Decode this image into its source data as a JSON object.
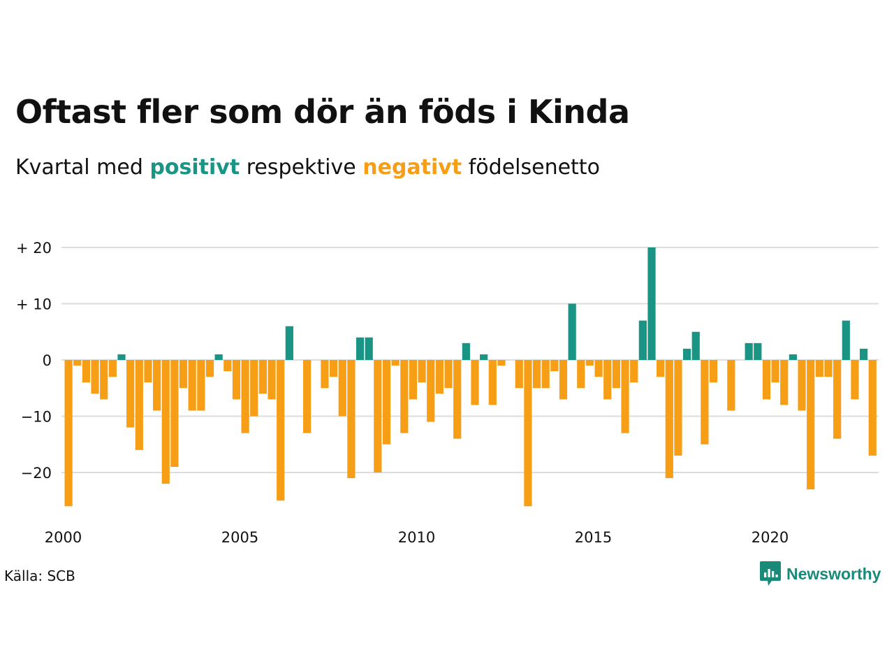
{
  "title": "Oftast fler som dör än föds i Kinda",
  "subtitle": {
    "prefix": "Kvartal med",
    "positive_word": "positivt",
    "middle": "respektive",
    "negative_word": "negativt",
    "suffix": "födelsenetto"
  },
  "source": "Källa: SCB",
  "logo_text": "Newsworthy",
  "colors": {
    "positive": "#1a9484",
    "negative": "#f59e16",
    "grid": "#dddddd",
    "text": "#111111"
  },
  "chart_data": {
    "type": "bar",
    "x_ticks": [
      "2000",
      "2005",
      "2010",
      "2015",
      "2020"
    ],
    "y_ticks": [
      "+ 20",
      "+ 10",
      "0",
      "−10",
      "−20"
    ],
    "y_tick_values": [
      20,
      10,
      0,
      -10,
      -20
    ],
    "ylim": [
      -27,
      21
    ],
    "start_year": 2000,
    "grid": true,
    "values": [
      -26,
      -1,
      -4,
      -6,
      -7,
      -3,
      1,
      -12,
      -16,
      -4,
      -9,
      -22,
      -19,
      -5,
      -9,
      -9,
      -3,
      1,
      -2,
      -7,
      -13,
      -10,
      -6,
      -7,
      -25,
      6,
      0,
      -13,
      0,
      -5,
      -3,
      -10,
      -21,
      4,
      4,
      -20,
      -15,
      -1,
      -13,
      -7,
      -4,
      -11,
      -6,
      -5,
      -14,
      3,
      -8,
      1,
      -8,
      -1,
      0,
      -5,
      -26,
      -5,
      -5,
      -2,
      -7,
      10,
      -5,
      -1,
      -3,
      -7,
      -5,
      -13,
      -4,
      7,
      20,
      -3,
      -21,
      -17,
      2,
      5,
      -15,
      -4,
      0,
      -9,
      0,
      3,
      3,
      -7,
      -4,
      -8,
      1,
      -9,
      -23,
      -3,
      -3,
      -14,
      7,
      -7,
      2,
      -17
    ]
  }
}
